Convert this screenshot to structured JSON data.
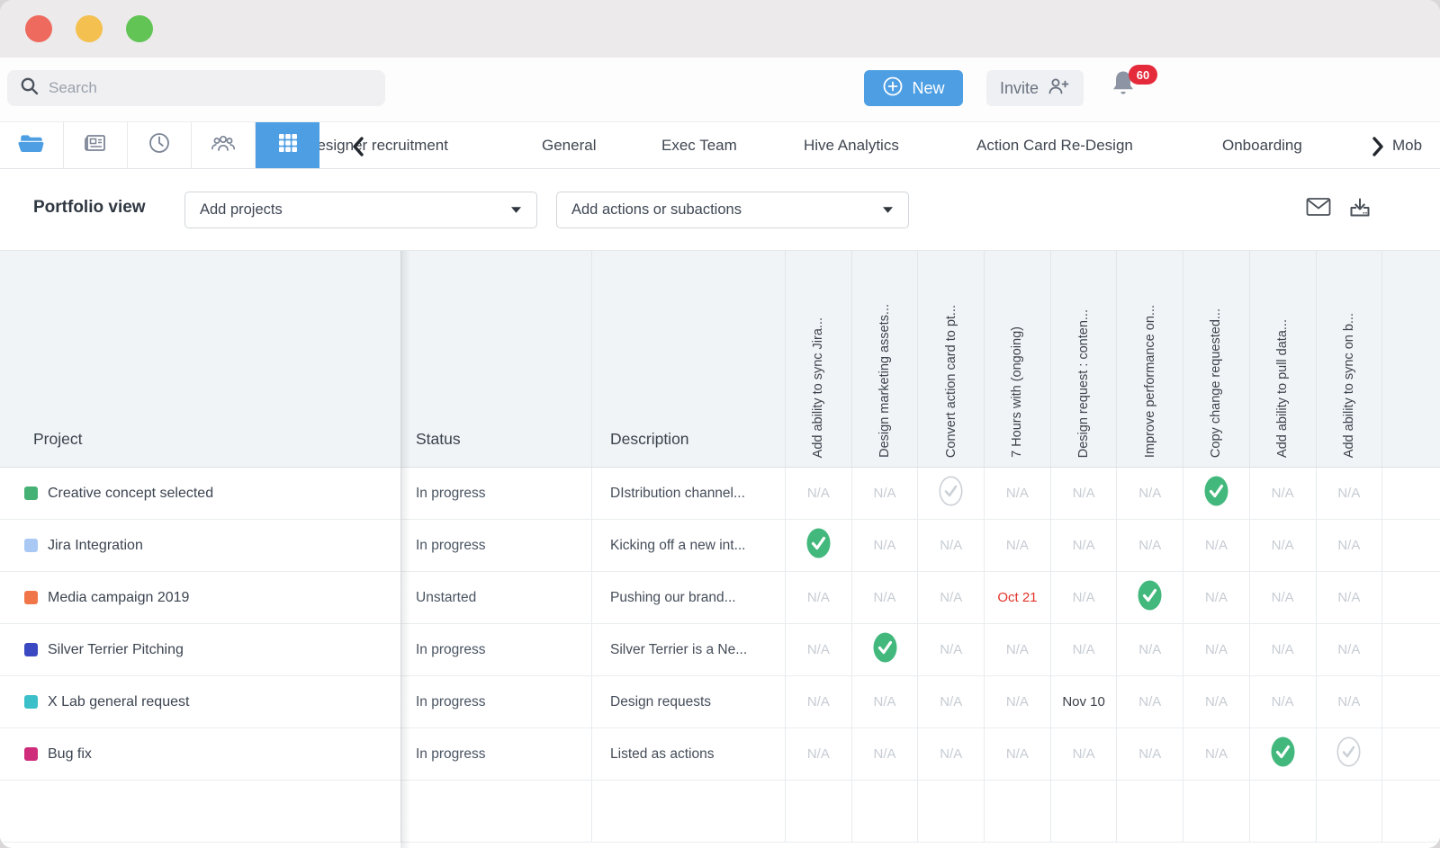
{
  "window": {
    "traffic_lights": [
      {
        "name": "close",
        "color": "#ee6a5f"
      },
      {
        "name": "minimize",
        "color": "#f4c04f"
      },
      {
        "name": "zoom",
        "color": "#61c455"
      }
    ]
  },
  "topbar": {
    "search": {
      "placeholder": "Search"
    },
    "new_button_label": "New",
    "invite_button_label": "Invite",
    "notifications_count": "60"
  },
  "nav": {
    "tabs": [
      "designer recruitment",
      "General",
      "Exec Team",
      "Hive Analytics",
      "Action Card Re-Design",
      "Onboarding",
      "Mob"
    ]
  },
  "filterbar": {
    "view_label": "Portfolio view",
    "add_projects_value": "Add projects",
    "add_actions_value": "Add actions or subactions"
  },
  "table": {
    "columns": [
      "Project",
      "Status",
      "Description"
    ],
    "action_columns": [
      "Add ability to sync Jira...",
      "Design marketing assets...",
      "Convert action card to pt...",
      "7 Hours with (ongoing)",
      "Design request : conten...",
      "Improve performance on...",
      "Copy change requested...",
      "Add ability to pull data...",
      "Add ability to sync on b..."
    ],
    "na_label": "N/A",
    "rows": [
      {
        "color": "#45b174",
        "project": "Creative concept selected",
        "status": "In progress",
        "description": "DIstribution channel...",
        "cells": [
          "na",
          "na",
          "check_outline",
          "na",
          "na",
          "na",
          "check",
          "na",
          "na"
        ]
      },
      {
        "color": "#a9c9f4",
        "project": "Jira Integration",
        "status": "In progress",
        "description": "Kicking off a new int...",
        "cells": [
          "check",
          "na",
          "na",
          "na",
          "na",
          "na",
          "na",
          "na",
          "na"
        ]
      },
      {
        "color": "#f0764a",
        "project": "Media campaign 2019",
        "status": "Unstarted",
        "description": "Pushing our brand...",
        "cells": [
          "na",
          "na",
          "na",
          {
            "date": "Oct 21",
            "color": "#e2342b"
          },
          "na",
          "check",
          "na",
          "na",
          "na"
        ]
      },
      {
        "color": "#3a49c1",
        "project": "Silver Terrier Pitching",
        "status": "In progress",
        "description": "Silver Terrier is a Ne...",
        "cells": [
          "na",
          "check",
          "na",
          "na",
          "na",
          "na",
          "na",
          "na",
          "na"
        ]
      },
      {
        "color": "#3bbfc9",
        "project": "X Lab general request",
        "status": "In progress",
        "description": "Design requests",
        "cells": [
          "na",
          "na",
          "na",
          "na",
          {
            "date": "Nov 10",
            "color": "#3a4049"
          },
          "na",
          "na",
          "na",
          "na"
        ]
      },
      {
        "color": "#cf2d7b",
        "project": "Bug fix",
        "status": "In progress",
        "description": "Listed as actions",
        "cells": [
          "na",
          "na",
          "na",
          "na",
          "na",
          "na",
          "na",
          "check",
          "check_outline"
        ]
      }
    ]
  },
  "colors": {
    "accent_blue": "#4d9ee3",
    "check_green": "#43b87c",
    "badge_red": "#e52b3b",
    "overdue_red": "#e2342b",
    "pie_icon_orange": "#f6c687"
  }
}
